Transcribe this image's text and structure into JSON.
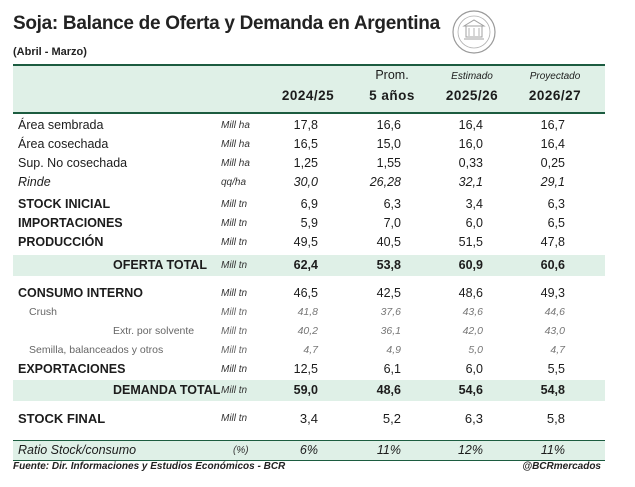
{
  "header": {
    "title": "Soja: Balance de Oferta y Demanda en Argentina",
    "subtitle": "(Abril - Marzo)",
    "logo_icon": "bcr-seal-icon"
  },
  "columns": [
    {
      "top": "",
      "bottom": "2024/25",
      "italic_top": false
    },
    {
      "top": "Prom.",
      "bottom": "5 años",
      "italic_top": false
    },
    {
      "top": "Estimado",
      "bottom": "2025/26",
      "italic_top": true
    },
    {
      "top": "Proyectado",
      "bottom": "2026/27",
      "italic_top": true
    }
  ],
  "rows": [
    {
      "label": "Área sembrada",
      "unit": "Mill ha",
      "values": [
        "17,8",
        "16,6",
        "16,4",
        "16,7"
      ],
      "style": "normal"
    },
    {
      "label": "Área cosechada",
      "unit": "Mill ha",
      "values": [
        "16,5",
        "15,0",
        "16,0",
        "16,4"
      ],
      "style": "normal"
    },
    {
      "label": "Sup. No cosechada",
      "unit": "Mill ha",
      "values": [
        "1,25",
        "1,55",
        "0,33",
        "0,25"
      ],
      "style": "normal"
    },
    {
      "label": "Rinde",
      "unit": "qq/ha",
      "values": [
        "30,0",
        "26,28",
        "32,1",
        "29,1"
      ],
      "style": "ital"
    },
    {
      "label": "STOCK INICIAL",
      "unit": "Mill tn",
      "values": [
        "6,9",
        "6,3",
        "3,4",
        "6,3"
      ],
      "style": "bold"
    },
    {
      "label": "IMPORTACIONES",
      "unit": "Mill tn",
      "values": [
        "5,9",
        "7,0",
        "6,0",
        "6,5"
      ],
      "style": "bold"
    },
    {
      "label": "PRODUCCIÓN",
      "unit": "Mill tn",
      "values": [
        "49,5",
        "40,5",
        "51,5",
        "47,8"
      ],
      "style": "bold"
    },
    {
      "label": "OFERTA TOTAL",
      "unit": "Mill tn",
      "values": [
        "62,4",
        "53,8",
        "60,9",
        "60,6"
      ],
      "style": "total"
    },
    {
      "label": "CONSUMO INTERNO",
      "unit": "Mill tn",
      "values": [
        "46,5",
        "42,5",
        "48,6",
        "49,3"
      ],
      "style": "bold"
    },
    {
      "label": "Crush",
      "unit": "Mill tn",
      "values": [
        "41,8",
        "37,6",
        "43,6",
        "44,6"
      ],
      "style": "small"
    },
    {
      "label": "Extr. por solvente",
      "unit": "Mill tn",
      "values": [
        "40,2",
        "36,1",
        "42,0",
        "43,0"
      ],
      "style": "small-indent"
    },
    {
      "label": "Semilla, balanceados y otros",
      "unit": "Mill tn",
      "values": [
        "4,7",
        "4,9",
        "5,0",
        "4,7"
      ],
      "style": "small"
    },
    {
      "label": "EXPORTACIONES",
      "unit": "Mill tn",
      "values": [
        "12,5",
        "6,1",
        "6,0",
        "5,5"
      ],
      "style": "bold"
    },
    {
      "label": "DEMANDA TOTAL",
      "unit": "Mill tn",
      "values": [
        "59,0",
        "48,6",
        "54,6",
        "54,8"
      ],
      "style": "total"
    },
    {
      "label": "STOCK FINAL",
      "unit": "Mill tn",
      "values": [
        "3,4",
        "5,2",
        "6,3",
        "5,8"
      ],
      "style": "bold-big"
    },
    {
      "label": "Ratio Stock/consumo",
      "unit": "(%)",
      "values": [
        "6%",
        "11%",
        "12%",
        "11%"
      ],
      "style": "ratio"
    }
  ],
  "footer": {
    "source": "Fuente: Dir. Informaciones y Estudios Económicos - BCR",
    "handle": "@BCRmercados"
  }
}
